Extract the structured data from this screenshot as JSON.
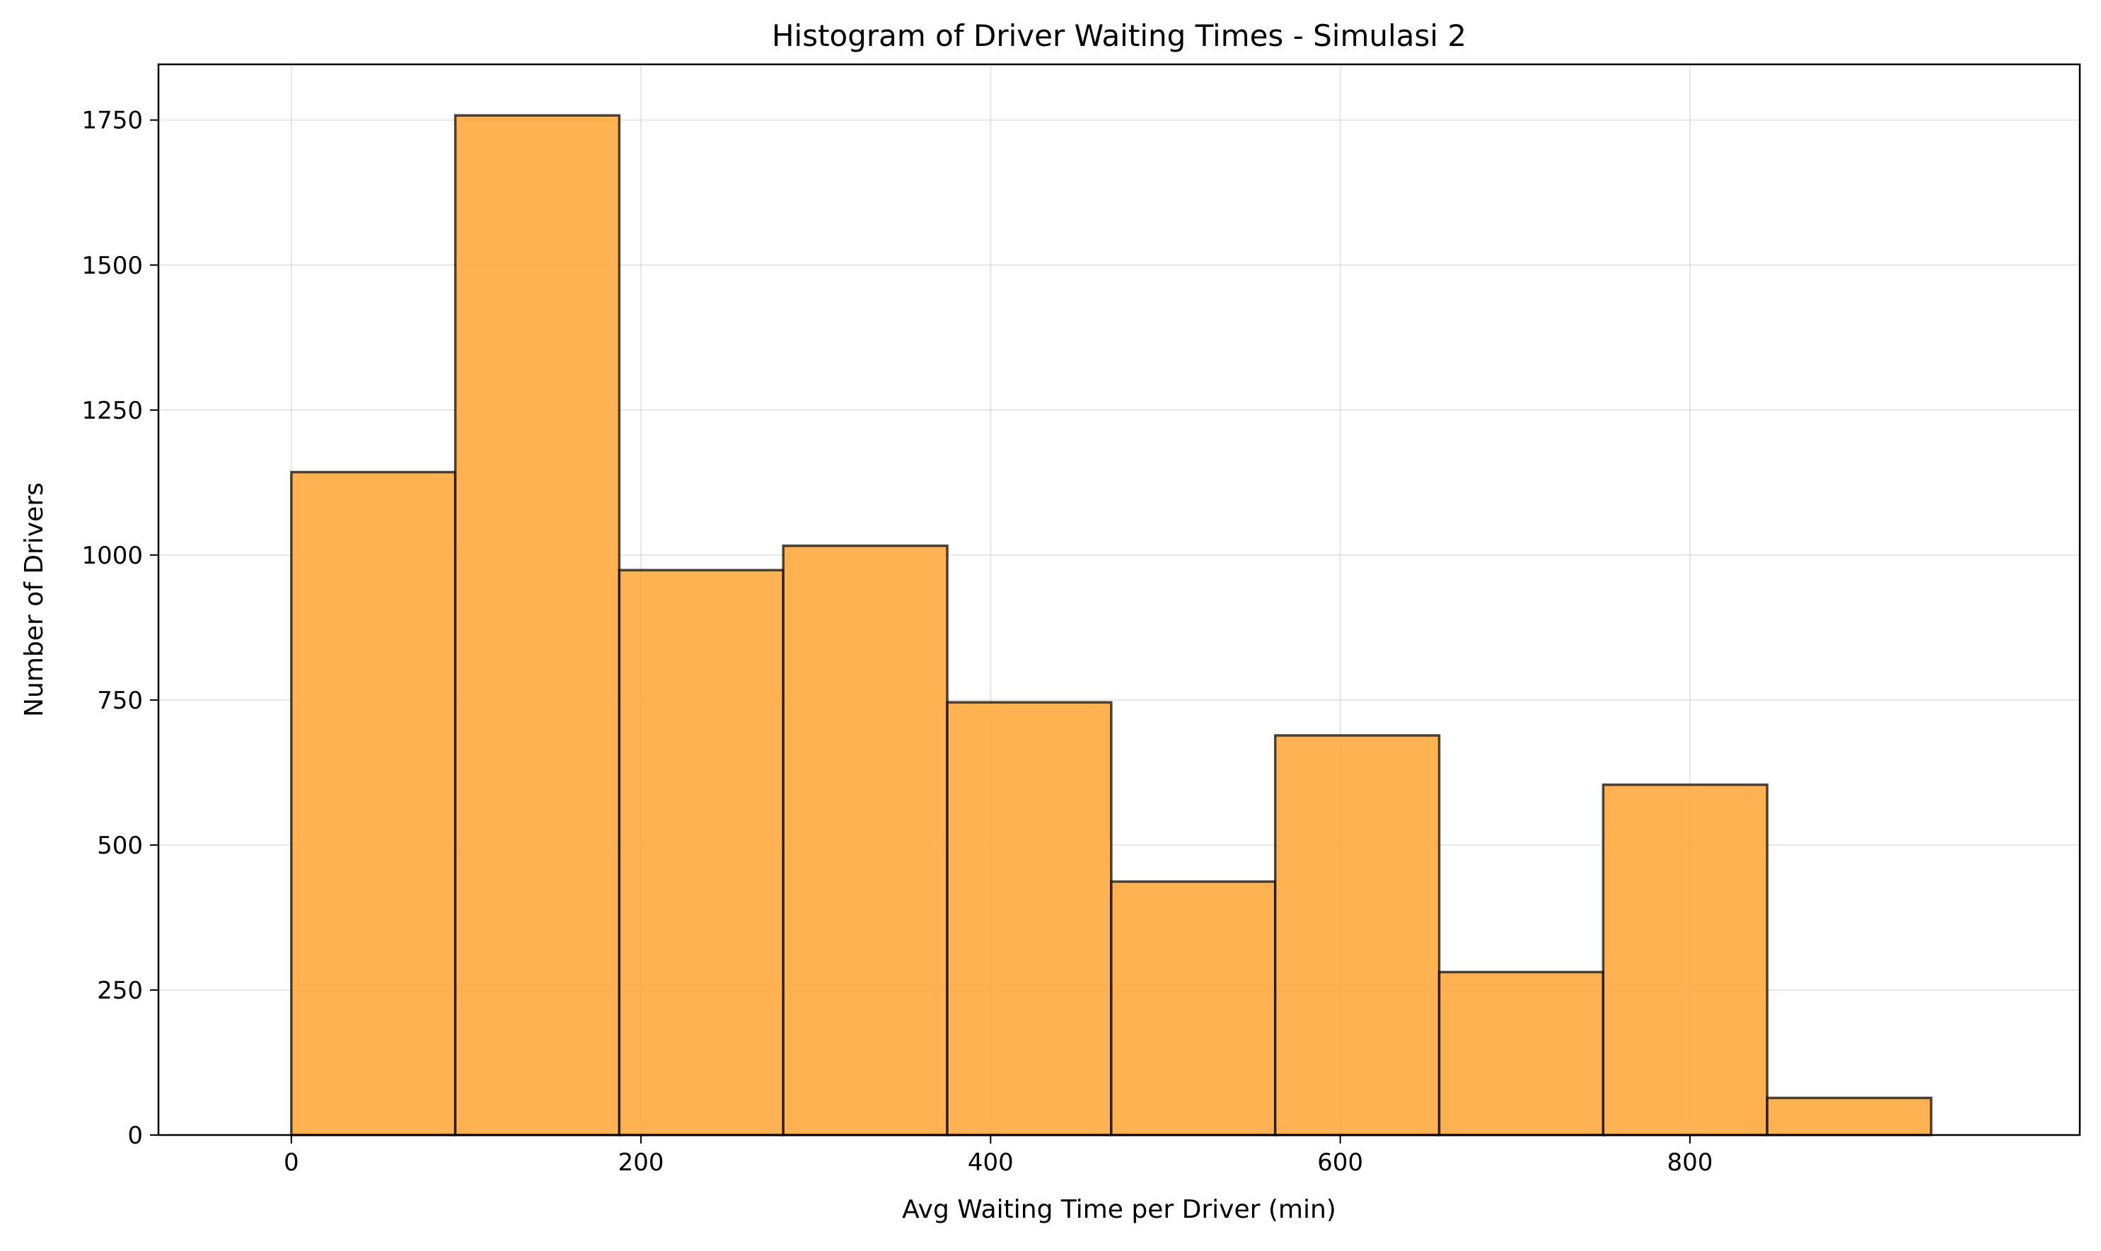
{
  "chart_data": {
    "type": "bar",
    "title": "Histogram of Driver Waiting Times - Simulasi 2",
    "xlabel": "Avg Waiting Time per Driver (min)",
    "ylabel": "Number of Drivers",
    "bin_edges": [
      0,
      93.8,
      187.6,
      281.4,
      375.2,
      469,
      562.8,
      656.6,
      750.4,
      844.2,
      938
    ],
    "values": [
      1143,
      1758,
      974,
      1016,
      746,
      437,
      689,
      281,
      604,
      64
    ],
    "xlim": [
      -76,
      1023
    ],
    "ylim": [
      0,
      1846
    ],
    "xticks": [
      0,
      200,
      400,
      600,
      800
    ],
    "yticks": [
      0,
      250,
      500,
      750,
      1000,
      1250,
      1500,
      1750
    ],
    "grid": true,
    "colors": {
      "bar_fill": "#ffa533",
      "bar_fill_opacity": 0.85,
      "bar_edge": "#000000"
    }
  }
}
